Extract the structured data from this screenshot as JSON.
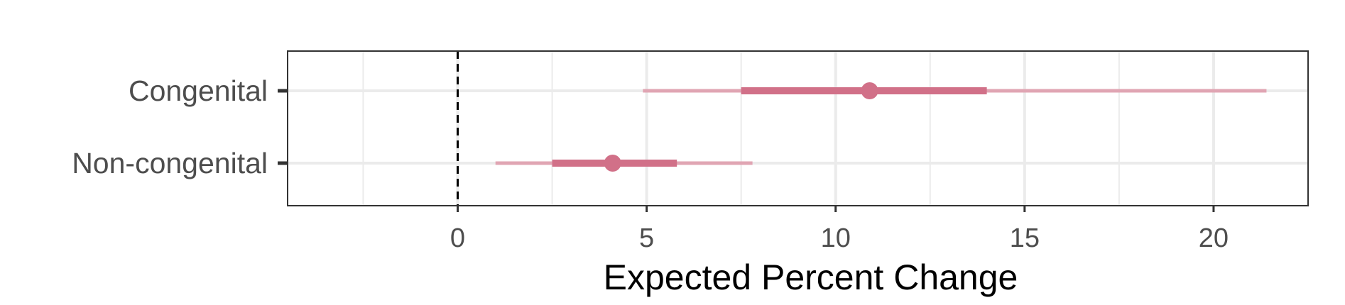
{
  "chart_data": {
    "type": "interval",
    "title": "",
    "xlabel": "Expected Percent Change",
    "ylabel": "",
    "xlim": [
      -4.5,
      22.5
    ],
    "x_ticks": [
      0,
      5,
      10,
      15,
      20
    ],
    "x_tick_labels": [
      "0",
      "5",
      "10",
      "15",
      "20"
    ],
    "x_minor_ticks": [
      -2.5,
      2.5,
      7.5,
      12.5,
      17.5
    ],
    "reference_line": {
      "x": 0,
      "style": "dashed"
    },
    "grid": true,
    "categories": [
      "Congenital",
      "Non-congenital"
    ],
    "series": [
      {
        "category": "Congenital",
        "estimate": 10.9,
        "inner_low": 7.5,
        "inner_high": 14.0,
        "outer_low": 4.9,
        "outer_high": 21.4
      },
      {
        "category": "Non-congenital",
        "estimate": 4.1,
        "inner_low": 2.5,
        "inner_high": 5.8,
        "outer_low": 1.0,
        "outer_high": 7.8
      }
    ],
    "colors": {
      "point": "#d17088",
      "outer_interval": "#e0a5b3",
      "grid": "#ebebeb",
      "panel_border": "#333333"
    }
  }
}
